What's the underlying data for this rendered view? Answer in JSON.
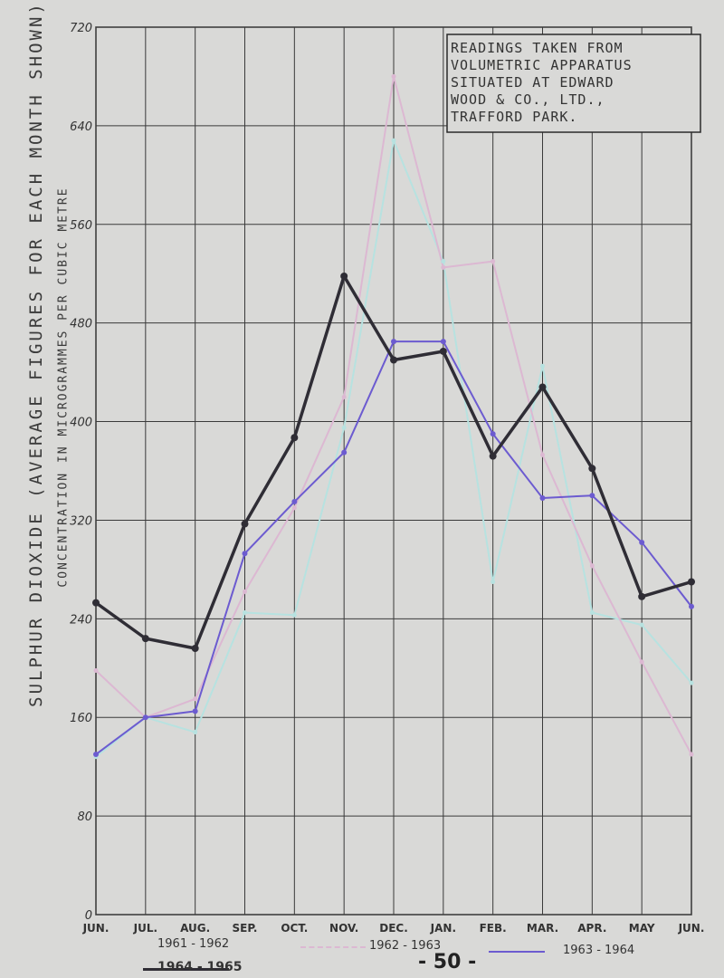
{
  "chart_data": {
    "type": "line",
    "title_lines": [
      "READINGS TAKEN FROM",
      "VOLUMETRIC APPARATUS",
      "SITUATED AT EDWARD",
      "WOOD & CO., LTD.,",
      "TRAFFORD PARK."
    ],
    "ylabel_line1": "SULPHUR DIOXIDE (AVERAGE FIGURES FOR EACH MONTH SHOWN)",
    "ylabel_line2": "CONCENTRATION IN MICROGRAMMES PER CUBIC METRE",
    "ylim": [
      0,
      720
    ],
    "yticks": [
      "0",
      "80",
      "160",
      "240",
      "320",
      "400",
      "480",
      "560",
      "640",
      "720"
    ],
    "categories": [
      "JUN.",
      "JUL.",
      "AUG.",
      "SEP.",
      "OCT.",
      "NOV.",
      "DEC.",
      "JAN.",
      "FEB.",
      "MAR.",
      "APR.",
      "MAY",
      "JUN."
    ],
    "grid": true,
    "series": [
      {
        "name": "1961 - 1962",
        "color": "#b7e2e0",
        "values": [
          128,
          160,
          148,
          245,
          243,
          395,
          628,
          530,
          270,
          445,
          245,
          235,
          188
        ]
      },
      {
        "name": "1962 - 1963",
        "color": "#dcb8d2",
        "values": [
          198,
          160,
          175,
          262,
          330,
          420,
          680,
          525,
          530,
          373,
          283,
          205,
          130
        ]
      },
      {
        "name": "1963 - 1964",
        "color": "#6c5bd0",
        "values": [
          130,
          160,
          165,
          293,
          335,
          375,
          465,
          465,
          390,
          338,
          340,
          302,
          250
        ]
      },
      {
        "name": "1964 - 1965",
        "color": "#2f2d35",
        "values": [
          253,
          224,
          216,
          317,
          387,
          518,
          450,
          457,
          372,
          428,
          362,
          258,
          270
        ]
      }
    ]
  },
  "legend_labels": {
    "s1": "1961 - 1962",
    "s2": "1962 - 1963",
    "s3": "1963 - 1964",
    "s4": "1964 - 1965"
  },
  "page_number": "- 50 -"
}
